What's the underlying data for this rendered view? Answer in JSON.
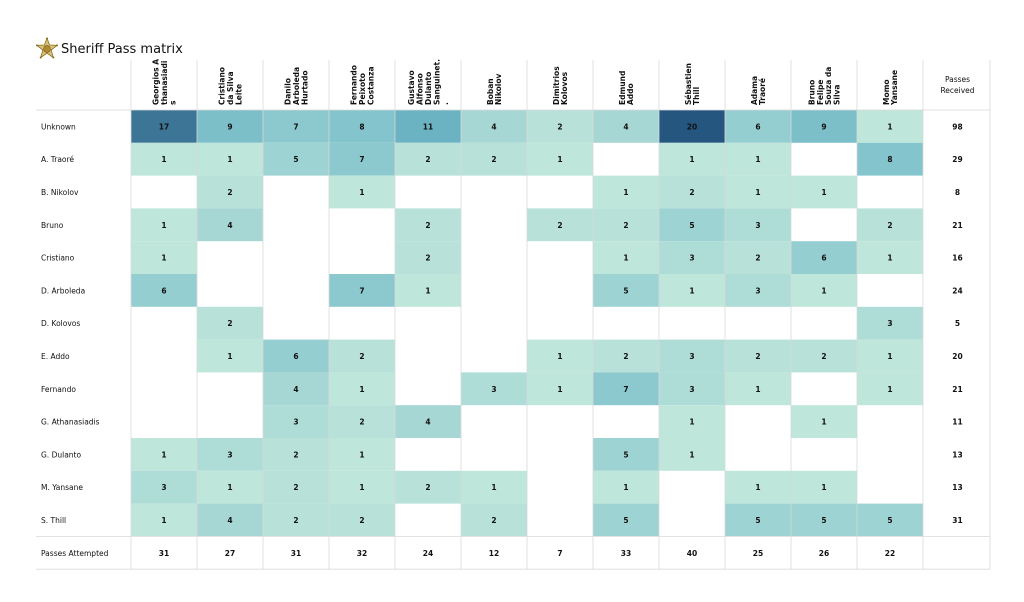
{
  "title": "Sheriff Pass matrix",
  "colors": {
    "scale_low": "#bfe6db",
    "scale_mid": "#6fb8c6",
    "scale_high": "#24567f",
    "grid": "#d9d9d9"
  },
  "icon": "sheriff-star-badge-icon",
  "chart_data": {
    "type": "heatmap",
    "title": "Sheriff Pass matrix",
    "columns": [
      [
        "Georgios A",
        "thanasiadi",
        "s"
      ],
      [
        "Cristiano",
        "da Silva",
        "Leite"
      ],
      [
        "Danilo",
        "Arboleda",
        "Hurtado"
      ],
      [
        "Fernando",
        "Peixoto",
        "Costanza"
      ],
      [
        "Gustavo",
        "Alfonso",
        "Dulanto",
        "Sanguinet.",
        "."
      ],
      [
        "Boban",
        "Nikolov"
      ],
      [
        "Dimitrios",
        "Kolovos"
      ],
      [
        "Edmund",
        "Addo"
      ],
      [
        "Sébastien",
        "Thill"
      ],
      [
        "Adama",
        "Traoré"
      ],
      [
        "Bruno",
        "Felipe",
        "Souza da",
        "Silva"
      ],
      [
        "Momo",
        "Yansane"
      ]
    ],
    "received_header": [
      "Passes",
      "Received"
    ],
    "attempted_label": "Passes Attempted",
    "rows": [
      {
        "name": "Unknown",
        "values": [
          17,
          9,
          7,
          8,
          11,
          4,
          2,
          4,
          20,
          6,
          9,
          1
        ],
        "received": 98
      },
      {
        "name": "A. Traoré",
        "values": [
          1,
          1,
          5,
          7,
          2,
          2,
          1,
          null,
          1,
          1,
          null,
          8
        ],
        "received": 29
      },
      {
        "name": "B. Nikolov",
        "values": [
          null,
          2,
          null,
          1,
          null,
          null,
          null,
          1,
          2,
          1,
          1,
          null
        ],
        "received": 8
      },
      {
        "name": "Bruno",
        "values": [
          1,
          4,
          null,
          null,
          2,
          null,
          2,
          2,
          5,
          3,
          null,
          2
        ],
        "received": 21
      },
      {
        "name": "Cristiano",
        "values": [
          1,
          null,
          null,
          null,
          2,
          null,
          null,
          1,
          3,
          2,
          6,
          1
        ],
        "received": 16
      },
      {
        "name": "D. Arboleda",
        "values": [
          6,
          null,
          null,
          7,
          1,
          null,
          null,
          5,
          1,
          3,
          1,
          null
        ],
        "received": 24
      },
      {
        "name": "D. Kolovos",
        "values": [
          null,
          2,
          null,
          null,
          null,
          null,
          null,
          null,
          null,
          null,
          null,
          3
        ],
        "received": 5
      },
      {
        "name": "E. Addo",
        "values": [
          null,
          1,
          6,
          2,
          null,
          null,
          1,
          2,
          3,
          2,
          2,
          1
        ],
        "received": 20
      },
      {
        "name": "Fernando",
        "values": [
          null,
          null,
          4,
          1,
          null,
          3,
          1,
          7,
          3,
          1,
          null,
          1
        ],
        "received": 21
      },
      {
        "name": "G. Athanasiadis",
        "values": [
          null,
          null,
          3,
          2,
          4,
          null,
          null,
          null,
          1,
          null,
          1,
          null
        ],
        "received": 11
      },
      {
        "name": "G. Dulanto",
        "values": [
          1,
          3,
          2,
          1,
          null,
          null,
          null,
          5,
          1,
          null,
          null,
          null
        ],
        "received": 13
      },
      {
        "name": "M. Yansane",
        "values": [
          3,
          1,
          2,
          1,
          2,
          1,
          null,
          1,
          null,
          1,
          1,
          null
        ],
        "received": 13
      },
      {
        "name": "S. Thill",
        "values": [
          1,
          4,
          2,
          2,
          null,
          2,
          null,
          5,
          null,
          5,
          5,
          5
        ],
        "received": 31
      }
    ],
    "attempted": [
      31,
      27,
      31,
      32,
      24,
      12,
      7,
      33,
      40,
      25,
      26,
      22
    ]
  }
}
